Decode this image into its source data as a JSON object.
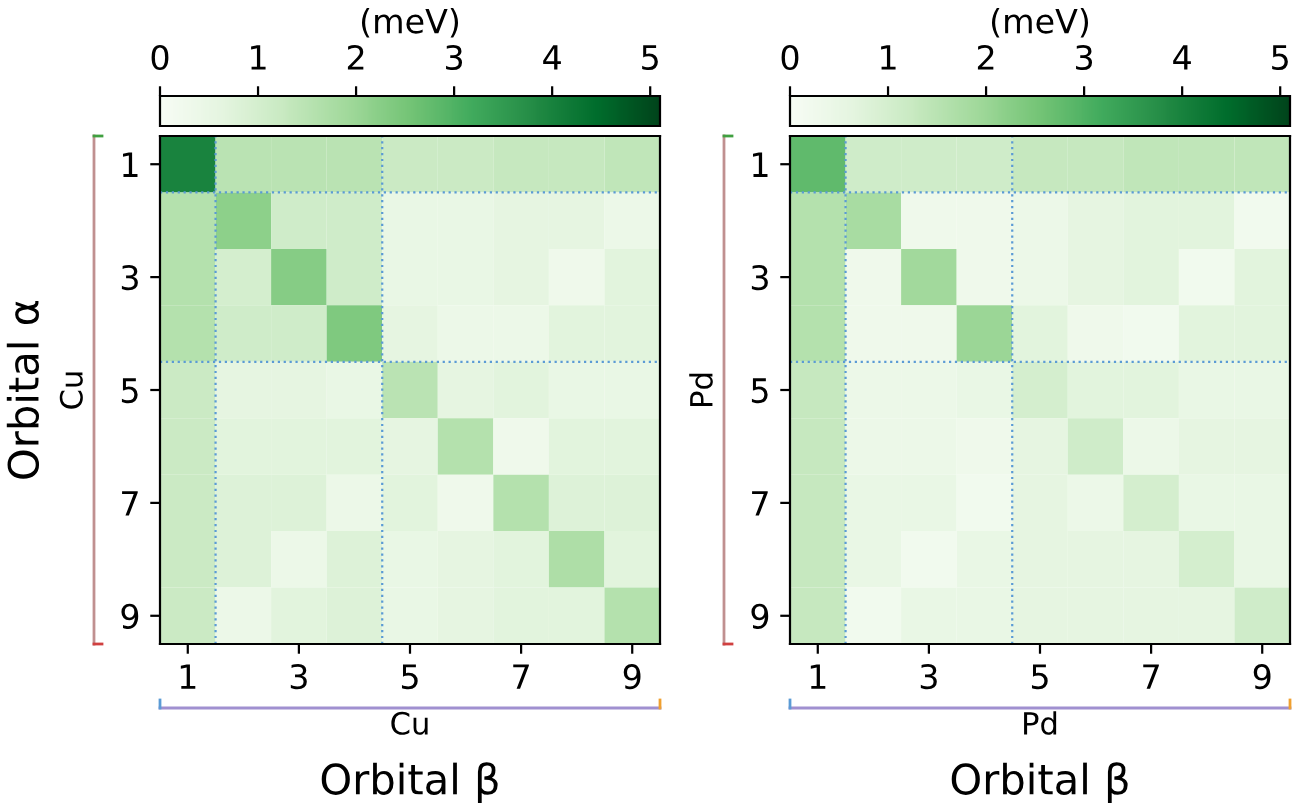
{
  "chart_data": [
    {
      "type": "heatmap",
      "xlabel": "Orbital β",
      "ylabel": "Orbital α",
      "clabel": "(meV)",
      "annotations": [
        "Cu",
        "Cu"
      ],
      "categories": [
        "1",
        null,
        "3",
        null,
        "5",
        null,
        "7",
        null,
        "9"
      ],
      "y_categories": [
        "1",
        null,
        "3",
        null,
        "5",
        null,
        "7",
        null,
        "9"
      ],
      "cells": [
        [
          4.0,
          1.5,
          1.5,
          1.5,
          1.2,
          1.2,
          1.3,
          1.3,
          1.4
        ],
        [
          1.6,
          2.2,
          1.1,
          1.1,
          0.5,
          0.5,
          0.6,
          0.6,
          0.4
        ],
        [
          1.6,
          1.0,
          2.3,
          1.1,
          0.5,
          0.5,
          0.6,
          0.3,
          0.7
        ],
        [
          1.6,
          1.1,
          1.1,
          2.4,
          0.6,
          0.4,
          0.4,
          0.7,
          0.7
        ],
        [
          1.2,
          0.6,
          0.6,
          0.5,
          1.5,
          0.6,
          0.7,
          0.5,
          0.5
        ],
        [
          1.2,
          0.7,
          0.7,
          0.7,
          0.6,
          1.6,
          0.3,
          0.7,
          0.7
        ],
        [
          1.2,
          0.8,
          0.8,
          0.4,
          0.7,
          0.3,
          1.6,
          0.8,
          0.8
        ],
        [
          1.2,
          0.8,
          0.4,
          0.8,
          0.5,
          0.6,
          0.7,
          1.7,
          0.7
        ],
        [
          1.2,
          0.4,
          0.7,
          0.8,
          0.5,
          0.6,
          0.7,
          0.7,
          1.6
        ]
      ],
      "clim": [
        0,
        5.1
      ],
      "cticks": [
        0,
        1,
        2,
        3,
        4,
        5
      ]
    },
    {
      "type": "heatmap",
      "xlabel": "Orbital β",
      "clabel": "(meV)",
      "annotations": [
        "Pd",
        "Pd"
      ],
      "categories": [
        "1",
        null,
        "3",
        null,
        "5",
        null,
        "7",
        null,
        "9"
      ],
      "y_categories": [
        "1",
        null,
        "3",
        null,
        "5",
        null,
        "7",
        null,
        "9"
      ],
      "cells": [
        [
          2.8,
          1.1,
          1.1,
          1.1,
          1.3,
          1.3,
          1.4,
          1.4,
          1.4
        ],
        [
          1.6,
          1.8,
          0.3,
          0.3,
          0.4,
          0.6,
          0.7,
          0.7,
          0.2
        ],
        [
          1.6,
          0.3,
          1.9,
          0.3,
          0.4,
          0.6,
          0.7,
          0.2,
          0.7
        ],
        [
          1.6,
          0.3,
          0.3,
          2.0,
          0.7,
          0.3,
          0.2,
          0.7,
          0.7
        ],
        [
          1.3,
          0.4,
          0.4,
          0.5,
          1.0,
          0.7,
          0.7,
          0.5,
          0.5
        ],
        [
          1.3,
          0.4,
          0.4,
          0.3,
          0.6,
          1.1,
          0.4,
          0.6,
          0.6
        ],
        [
          1.3,
          0.5,
          0.5,
          0.2,
          0.6,
          0.4,
          1.0,
          0.5,
          0.5
        ],
        [
          1.3,
          0.5,
          0.2,
          0.5,
          0.6,
          0.6,
          0.6,
          1.0,
          0.5
        ],
        [
          1.3,
          0.2,
          0.5,
          0.5,
          0.6,
          0.6,
          0.6,
          0.6,
          1.1
        ]
      ],
      "clim": [
        0,
        5.1
      ],
      "cticks": [
        0,
        1,
        2,
        3,
        4,
        5
      ]
    }
  ]
}
